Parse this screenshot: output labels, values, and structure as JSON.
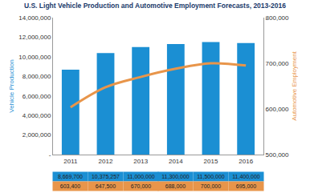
{
  "chart_data": {
    "type": "bar",
    "title": "U.S. Light Vehicle Production and Automotive Employment Forecasts, 2013-2016",
    "categories": [
      "2011",
      "2012",
      "2013",
      "2014",
      "2015",
      "2016"
    ],
    "series": [
      {
        "name": "Vehicle Production",
        "type": "bar",
        "color": "#1b8fd3",
        "values": [
          8669700,
          10375257,
          11000000,
          11300000,
          11500000,
          11400000
        ],
        "value_labels": [
          "8,669,700",
          "10,375,257",
          "11,000,000",
          "11,300,000",
          "11,500,000",
          "11,400,000"
        ]
      },
      {
        "name": "Automotive Employment",
        "type": "line",
        "color": "#e8954a",
        "axis": "y2",
        "values": [
          603400,
          647500,
          670000,
          688000,
          700000,
          695000
        ],
        "value_labels": [
          "603,400",
          "647,500",
          "670,000",
          "688,000",
          "700,000",
          "695,000"
        ]
      }
    ],
    "ylabel": "Vehicle Production",
    "y2label": "Automotive Employment",
    "ylim": [
      0,
      14000000
    ],
    "yticks": [
      {
        "value": 0,
        "label": "-"
      },
      {
        "value": 2000000,
        "label": "2,000,000"
      },
      {
        "value": 4000000,
        "label": "4,000,000"
      },
      {
        "value": 6000000,
        "label": "6,000,000"
      },
      {
        "value": 8000000,
        "label": "8,000,000"
      },
      {
        "value": 10000000,
        "label": "10,000,000"
      },
      {
        "value": 12000000,
        "label": "12,000,000"
      },
      {
        "value": 14000000,
        "label": "14,000,000"
      }
    ],
    "y2lim": [
      500000,
      800000
    ],
    "y2ticks": [
      {
        "value": 500000,
        "label": "500,000"
      },
      {
        "value": 600000,
        "label": "600,000"
      },
      {
        "value": 700000,
        "label": "700,000"
      },
      {
        "value": 800000,
        "label": "800,000"
      }
    ],
    "grid": false,
    "data_labels": true
  }
}
